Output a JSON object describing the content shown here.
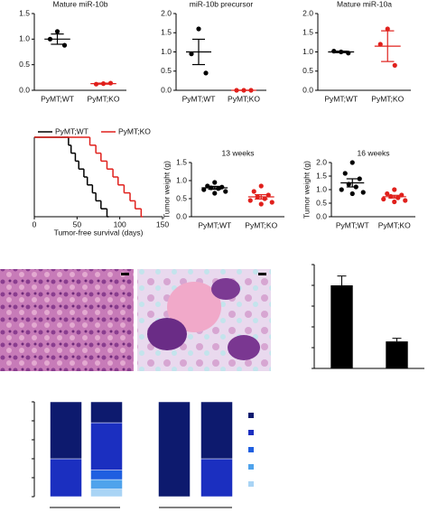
{
  "chart_data": [
    {
      "type": "dot",
      "title": "Mature miR-10b",
      "categories": [
        "PyMT;WT",
        "PyMT;KO"
      ],
      "points": [
        [
          1.15,
          1.0,
          0.88
        ],
        [
          0.13,
          0.12,
          0.14
        ]
      ],
      "means": [
        1.0,
        0.13
      ],
      "sems": [
        0.1,
        0.01
      ],
      "colors": [
        "#000000",
        "#e0201c"
      ],
      "ylim": [
        0,
        1.5
      ],
      "yticks": [
        {
          "value": 0,
          "label": "0.0"
        },
        0.5,
        {
          "value": 1,
          "label": "1.0"
        },
        1.5
      ]
    },
    {
      "type": "dot",
      "title": "miR-10b precursor",
      "categories": [
        "PyMT;WT",
        "PyMT;KO"
      ],
      "points": [
        [
          1.6,
          0.95,
          0.45
        ],
        [
          0,
          0,
          0
        ]
      ],
      "means": [
        1.0,
        0
      ],
      "sems": [
        0.33,
        0
      ],
      "colors": [
        "#000000",
        "#e0201c"
      ],
      "ylim": [
        0,
        2
      ],
      "yticks": [
        {
          "value": 0,
          "label": "0.0"
        },
        0.5,
        {
          "value": 1,
          "label": "1.0"
        },
        1.5,
        {
          "value": 2,
          "label": "2.0"
        }
      ]
    },
    {
      "type": "dot",
      "title": "Mature miR-10a",
      "categories": [
        "PyMT;WT",
        "PyMT;KO"
      ],
      "points": [
        [
          1.0,
          1.02,
          0.97
        ],
        [
          1.6,
          1.2,
          0.65
        ]
      ],
      "means": [
        1.0,
        1.15
      ],
      "sems": [
        0.02,
        0.4
      ],
      "colors": [
        "#000000",
        "#e0201c"
      ],
      "ylim": [
        0,
        2
      ],
      "yticks": [
        {
          "value": 0,
          "label": "0.0"
        },
        0.5,
        {
          "value": 1,
          "label": "1.0"
        },
        1.5,
        {
          "value": 2,
          "label": "2.0"
        }
      ]
    },
    {
      "type": "survival",
      "xlabel": "Tumor-free survival (days)",
      "xlim": [
        0,
        150
      ],
      "xticks": [
        0,
        50,
        100,
        150
      ],
      "ylim": [
        0,
        100
      ],
      "series": [
        {
          "name": "PyMT;WT",
          "color": "#000000",
          "x": [
            0,
            40,
            43,
            48,
            52,
            58,
            62,
            68,
            72,
            78,
            85
          ],
          "values": [
            100,
            90,
            80,
            70,
            60,
            50,
            40,
            30,
            20,
            10,
            0
          ]
        },
        {
          "name": "PyMT;KO",
          "color": "#e0201c",
          "x": [
            0,
            65,
            72,
            78,
            85,
            92,
            98,
            105,
            112,
            118,
            125
          ],
          "values": [
            100,
            90,
            80,
            70,
            60,
            50,
            40,
            30,
            20,
            10,
            0
          ]
        }
      ]
    },
    {
      "type": "dot",
      "title": "13 weeks",
      "ylabel": "Tumor weight (g)",
      "categories": [
        "PyMT;WT",
        "PyMT;KO"
      ],
      "points": [
        [
          0.95,
          0.85,
          0.82,
          0.8,
          0.78,
          0.75,
          0.7,
          0.65
        ],
        [
          0.85,
          0.7,
          0.6,
          0.55,
          0.5,
          0.45,
          0.4,
          0.35
        ]
      ],
      "means": [
        0.8,
        0.55
      ],
      "sems": [
        0.04,
        0.06
      ],
      "colors": [
        "#000000",
        "#e0201c"
      ],
      "ylim": [
        0,
        1.5
      ],
      "yticks": [
        {
          "value": 0,
          "label": "0.0"
        },
        0.5,
        {
          "value": 1,
          "label": "1.0"
        },
        1.5
      ]
    },
    {
      "type": "dot",
      "title": "16 weeks",
      "ylabel": "Tumor weight (g)",
      "categories": [
        "PyMT;WT",
        "PyMT;KO"
      ],
      "points": [
        [
          2.0,
          1.6,
          1.4,
          1.2,
          1.1,
          1.0,
          0.9,
          0.85
        ],
        [
          1.0,
          0.85,
          0.8,
          0.75,
          0.7,
          0.65,
          0.6,
          0.55
        ]
      ],
      "means": [
        1.25,
        0.74
      ],
      "sems": [
        0.15,
        0.05
      ],
      "colors": [
        "#000000",
        "#e0201c"
      ],
      "ylim": [
        0,
        2
      ],
      "yticks": [
        {
          "value": 0,
          "label": "0.0"
        },
        0.5,
        {
          "value": 1,
          "label": "1.0"
        },
        1.5,
        {
          "value": 2,
          "label": "2.0"
        }
      ]
    },
    {
      "type": "bar",
      "values": [
        4.0,
        1.3
      ],
      "errors": [
        0.45,
        0.15
      ],
      "color": "#000000",
      "ylim": [
        0,
        5
      ],
      "yticks": [
        0,
        1,
        2,
        3,
        4,
        5
      ]
    },
    {
      "type": "stacked_bar",
      "ylim": [
        0,
        100
      ],
      "yticks": [
        0,
        20,
        40,
        60,
        80,
        100
      ],
      "series": [
        {
          "color": "#a9d4f5",
          "values": [
            0,
            8,
            0,
            0
          ]
        },
        {
          "color": "#4fa3ec",
          "values": [
            0,
            10,
            0,
            0
          ]
        },
        {
          "color": "#1f5fe0",
          "values": [
            0,
            10,
            0,
            0
          ]
        },
        {
          "color": "#1b2fc0",
          "values": [
            40,
            50,
            0,
            40
          ]
        },
        {
          "color": "#0d1a6e",
          "values": [
            60,
            22,
            100,
            60
          ]
        }
      ]
    }
  ]
}
